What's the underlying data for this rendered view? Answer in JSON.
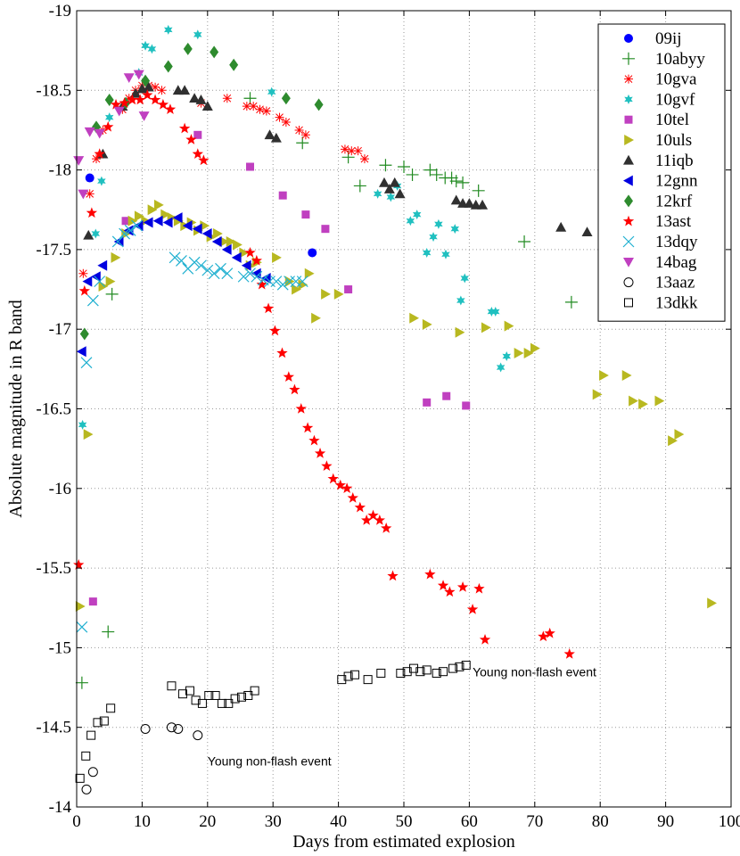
{
  "chart_data": {
    "type": "scatter",
    "xlabel": "Days from estimated explosion",
    "ylabel": "Absolute magnitude in R band",
    "xlim": [
      0,
      100
    ],
    "ylim": [
      -14,
      -19
    ],
    "xticks": [
      0,
      10,
      20,
      30,
      40,
      50,
      60,
      70,
      80,
      90,
      100
    ],
    "yticks": [
      -14,
      -14.5,
      -15,
      -15.5,
      -16,
      -16.5,
      -17,
      -17.5,
      -18,
      -18.5,
      -19
    ],
    "xtick_labels": [
      "0",
      "10",
      "20",
      "30",
      "40",
      "50",
      "60",
      "70",
      "80",
      "90",
      "100"
    ],
    "ytick_labels": [
      "-14",
      "-14.5",
      "-15",
      "-15.5",
      "-16",
      "-16.5",
      "-17",
      "-17.5",
      "-18",
      "-18.5",
      "-19"
    ],
    "grid": true,
    "legend_position": "top-right",
    "annotations": [
      {
        "text": "Young non-flash event",
        "x": 20,
        "y": -14.26
      },
      {
        "text": "Young non-flash event",
        "x": 60.5,
        "y": -14.82
      }
    ],
    "series": [
      {
        "name": "09ij",
        "marker": "circle",
        "color": "#0000ff",
        "x": [
          2.0,
          36.0
        ],
        "y": [
          -17.95,
          -17.48
        ]
      },
      {
        "name": "10abyy",
        "marker": "plus",
        "color": "#228b22",
        "x": [
          0.8,
          4.8,
          5.4,
          26.5,
          34.5,
          41.5,
          43.3,
          47.2,
          50.0,
          51.3,
          54.0,
          55.0,
          56.3,
          57.3,
          58.0,
          59.0,
          61.4,
          68.4,
          75.6
        ],
        "y": [
          -14.78,
          -15.1,
          -17.22,
          -18.45,
          -18.17,
          -18.08,
          -17.9,
          -18.03,
          -18.02,
          -17.97,
          -18.0,
          -17.97,
          -17.95,
          -17.95,
          -17.93,
          -17.92,
          -17.87,
          -17.55,
          -17.17
        ]
      },
      {
        "name": "10gva",
        "marker": "asterisk",
        "color": "#ff0000",
        "x": [
          1.0,
          2.0,
          3.0,
          4.0,
          7.0,
          8.0,
          9.0,
          10.0,
          11.0,
          12.0,
          13.0,
          19.0,
          23.0,
          26.0,
          27.0,
          28.0,
          29.0,
          31.0,
          32.0,
          34.0,
          35.0,
          41.0,
          42.0,
          43.0,
          44.0
        ],
        "y": [
          -17.35,
          -17.85,
          -18.07,
          -18.25,
          -18.38,
          -18.45,
          -18.5,
          -18.53,
          -18.53,
          -18.52,
          -18.5,
          -18.42,
          -18.45,
          -18.4,
          -18.4,
          -18.38,
          -18.37,
          -18.33,
          -18.3,
          -18.25,
          -18.22,
          -18.13,
          -18.12,
          -18.12,
          -18.07
        ]
      },
      {
        "name": "10gvf",
        "marker": "star6",
        "color": "#20c0c0",
        "x": [
          0.9,
          2.9,
          3.8,
          5.0,
          9.5,
          10.5,
          11.5,
          14.0,
          18.5,
          29.8,
          46.0,
          48.0,
          49.0,
          51.0,
          52.0,
          53.5,
          54.5,
          55.3,
          56.4,
          57.8,
          58.7,
          59.3,
          63.4,
          64.0,
          64.8,
          65.7
        ],
        "y": [
          -16.4,
          -17.6,
          -17.93,
          -18.33,
          -18.61,
          -18.78,
          -18.76,
          -18.88,
          -18.85,
          -18.49,
          -17.85,
          -17.83,
          -17.9,
          -17.68,
          -17.72,
          -17.48,
          -17.58,
          -17.66,
          -17.47,
          -17.63,
          -17.18,
          -17.32,
          -17.11,
          -17.11,
          -16.76,
          -16.83
        ]
      },
      {
        "name": "10tel",
        "marker": "square",
        "color": "#c040c0",
        "x": [
          2.5,
          7.5,
          18.5,
          26.5,
          31.5,
          35.0,
          38.0,
          41.5,
          53.5,
          56.5,
          59.5
        ],
        "y": [
          -15.29,
          -17.68,
          -18.22,
          -18.02,
          -17.84,
          -17.72,
          -17.63,
          -17.25,
          -16.54,
          -16.58,
          -16.52
        ]
      },
      {
        "name": "10uls",
        "marker": "triangle-right",
        "color": "#b8b820",
        "x": [
          0.5,
          1.7,
          4.0,
          5.1,
          5.9,
          7.5,
          8.5,
          9.5,
          10.5,
          11.5,
          12.5,
          13.5,
          14.5,
          15.5,
          16.5,
          17.5,
          18.5,
          19.5,
          20.5,
          21.5,
          22.5,
          23.5,
          24.5,
          25.5,
          26.5,
          27.5,
          30.5,
          32.5,
          33.5,
          34.5,
          35.5,
          36.5,
          38.0,
          40.0,
          51.5,
          53.5,
          58.5,
          62.5,
          66.0,
          67.5,
          69.0,
          70.0,
          79.5,
          80.5,
          84.0,
          85.0,
          86.5,
          89.0,
          91.0,
          92.0,
          97.0
        ],
        "y": [
          -15.26,
          -16.34,
          -17.27,
          -17.3,
          -17.45,
          -17.6,
          -17.68,
          -17.71,
          -17.68,
          -17.75,
          -17.78,
          -17.72,
          -17.7,
          -17.68,
          -17.65,
          -17.67,
          -17.62,
          -17.65,
          -17.58,
          -17.6,
          -17.55,
          -17.55,
          -17.53,
          -17.48,
          -17.4,
          -17.42,
          -17.45,
          -17.3,
          -17.25,
          -17.28,
          -17.35,
          -17.07,
          -17.22,
          -17.22,
          -17.07,
          -17.03,
          -16.98,
          -17.01,
          -17.02,
          -16.85,
          -16.85,
          -16.88,
          -16.59,
          -16.71,
          -16.71,
          -16.55,
          -16.53,
          -16.55,
          -16.3,
          -16.34,
          -15.28
        ]
      },
      {
        "name": "11iqb",
        "marker": "triangle-up",
        "color": "#303030",
        "x": [
          1.8,
          4.0,
          7.0,
          9.0,
          10.0,
          11.0,
          15.5,
          16.5,
          18.0,
          19.0,
          20.0,
          29.5,
          30.5,
          47.0,
          47.8,
          48.6,
          49.4,
          58.0,
          59.0,
          60.0,
          61.0,
          62.0,
          74.0,
          78.0
        ],
        "y": [
          -17.59,
          -18.1,
          -18.4,
          -18.48,
          -18.51,
          -18.52,
          -18.5,
          -18.5,
          -18.45,
          -18.44,
          -18.4,
          -18.22,
          -18.2,
          -17.92,
          -17.88,
          -17.92,
          -17.85,
          -17.81,
          -17.79,
          -17.79,
          -17.78,
          -17.78,
          -17.64,
          -17.61
        ]
      },
      {
        "name": "12gnn",
        "marker": "triangle-left",
        "color": "#0000e0",
        "x": [
          0.8,
          1.7,
          3.0,
          4.0,
          6.5,
          8.0,
          9.5,
          11.0,
          12.5,
          14.0,
          15.5,
          17.0,
          18.5,
          20.0,
          21.5,
          23.0,
          24.5,
          26.0,
          27.5,
          29.0
        ],
        "y": [
          -16.86,
          -17.3,
          -17.33,
          -17.4,
          -17.55,
          -17.62,
          -17.65,
          -17.67,
          -17.68,
          -17.67,
          -17.7,
          -17.65,
          -17.63,
          -17.6,
          -17.55,
          -17.5,
          -17.45,
          -17.4,
          -17.35,
          -17.32
        ]
      },
      {
        "name": "12krf",
        "marker": "diamond",
        "color": "#2e8b2e",
        "x": [
          1.2,
          3.0,
          5.0,
          7.5,
          10.5,
          14.0,
          17.0,
          21.0,
          24.0,
          32.0,
          37.0
        ],
        "y": [
          -16.97,
          -18.27,
          -18.44,
          -18.42,
          -18.56,
          -18.65,
          -18.76,
          -18.74,
          -18.66,
          -18.45,
          -18.41
        ]
      },
      {
        "name": "13ast",
        "marker": "star",
        "color": "#ff0000",
        "x": [
          0.3,
          1.2,
          2.3,
          3.5,
          4.8,
          6.0,
          7.3,
          8.5,
          9.7,
          10.8,
          12.0,
          13.2,
          14.3,
          16.5,
          17.5,
          18.5,
          19.4,
          26.5,
          27.5,
          28.3,
          29.3,
          30.3,
          31.4,
          32.4,
          33.3,
          34.3,
          35.3,
          36.3,
          37.2,
          38.2,
          39.2,
          40.3,
          41.3,
          42.2,
          43.3,
          44.3,
          45.3,
          46.3,
          47.3,
          48.3,
          54.0,
          56.0,
          57.0,
          59.0,
          60.5,
          61.5,
          62.4,
          71.3,
          72.3,
          75.3
        ],
        "y": [
          -15.52,
          -17.24,
          -17.73,
          -18.1,
          -18.27,
          -18.41,
          -18.42,
          -18.44,
          -18.44,
          -18.47,
          -18.44,
          -18.41,
          -18.38,
          -18.26,
          -18.19,
          -18.1,
          -18.06,
          -17.48,
          -17.43,
          -17.28,
          -17.13,
          -16.99,
          -16.85,
          -16.7,
          -16.62,
          -16.5,
          -16.38,
          -16.3,
          -16.22,
          -16.14,
          -16.06,
          -16.02,
          -16.0,
          -15.94,
          -15.88,
          -15.8,
          -15.83,
          -15.8,
          -15.75,
          -15.45,
          -15.46,
          -15.39,
          -15.35,
          -15.38,
          -15.24,
          -15.37,
          -15.05,
          -15.07,
          -15.09,
          -14.96
        ]
      },
      {
        "name": "13dqy",
        "marker": "x",
        "color": "#20b0d0",
        "x": [
          0.8,
          1.5,
          2.5,
          3.5,
          6.3,
          7.3,
          8.2,
          9.2,
          15.0,
          16.0,
          17.0,
          18.0,
          19.0,
          20.0,
          21.0,
          22.0,
          23.0,
          25.5,
          26.5,
          27.5,
          28.5,
          29.5,
          30.5,
          31.5,
          32.5,
          33.5,
          34.5
        ],
        "y": [
          -15.13,
          -16.79,
          -17.18,
          -17.3,
          -17.55,
          -17.6,
          -17.62,
          -17.65,
          -17.45,
          -17.43,
          -17.38,
          -17.42,
          -17.4,
          -17.37,
          -17.35,
          -17.38,
          -17.35,
          -17.33,
          -17.35,
          -17.33,
          -17.31,
          -17.3,
          -17.3,
          -17.28,
          -17.3,
          -17.3,
          -17.3
        ]
      },
      {
        "name": "14bag",
        "marker": "triangle-down",
        "color": "#c040c0",
        "x": [
          0.3,
          1.0,
          2.0,
          3.5,
          6.5,
          8.0,
          9.5,
          10.3
        ],
        "y": [
          -18.06,
          -17.85,
          -18.24,
          -18.23,
          -18.37,
          -18.58,
          -18.6,
          -18.34
        ]
      },
      {
        "name": "13aaz",
        "marker": "circle-open",
        "color": "#000000",
        "x": [
          1.5,
          2.5,
          10.5,
          14.5,
          15.5,
          18.5
        ],
        "y": [
          -14.11,
          -14.22,
          -14.49,
          -14.5,
          -14.49,
          -14.45
        ]
      },
      {
        "name": "13dkk",
        "marker": "square-open",
        "color": "#000000",
        "x": [
          0.5,
          1.4,
          2.2,
          3.2,
          4.2,
          5.2,
          14.5,
          16.2,
          17.3,
          18.2,
          19.2,
          20.2,
          21.2,
          22.2,
          23.2,
          24.2,
          25.2,
          26.2,
          27.2,
          40.5,
          41.5,
          42.5,
          44.5,
          46.5,
          49.5,
          50.5,
          51.5,
          52.5,
          53.5,
          55.0,
          56.0,
          57.5,
          58.5,
          59.5
        ],
        "y": [
          -14.18,
          -14.32,
          -14.45,
          -14.53,
          -14.54,
          -14.62,
          -14.76,
          -14.71,
          -14.73,
          -14.67,
          -14.65,
          -14.7,
          -14.7,
          -14.65,
          -14.65,
          -14.68,
          -14.69,
          -14.7,
          -14.73,
          -14.8,
          -14.82,
          -14.83,
          -14.8,
          -14.84,
          -14.84,
          -14.85,
          -14.87,
          -14.85,
          -14.86,
          -14.84,
          -14.85,
          -14.87,
          -14.88,
          -14.89
        ]
      }
    ]
  }
}
